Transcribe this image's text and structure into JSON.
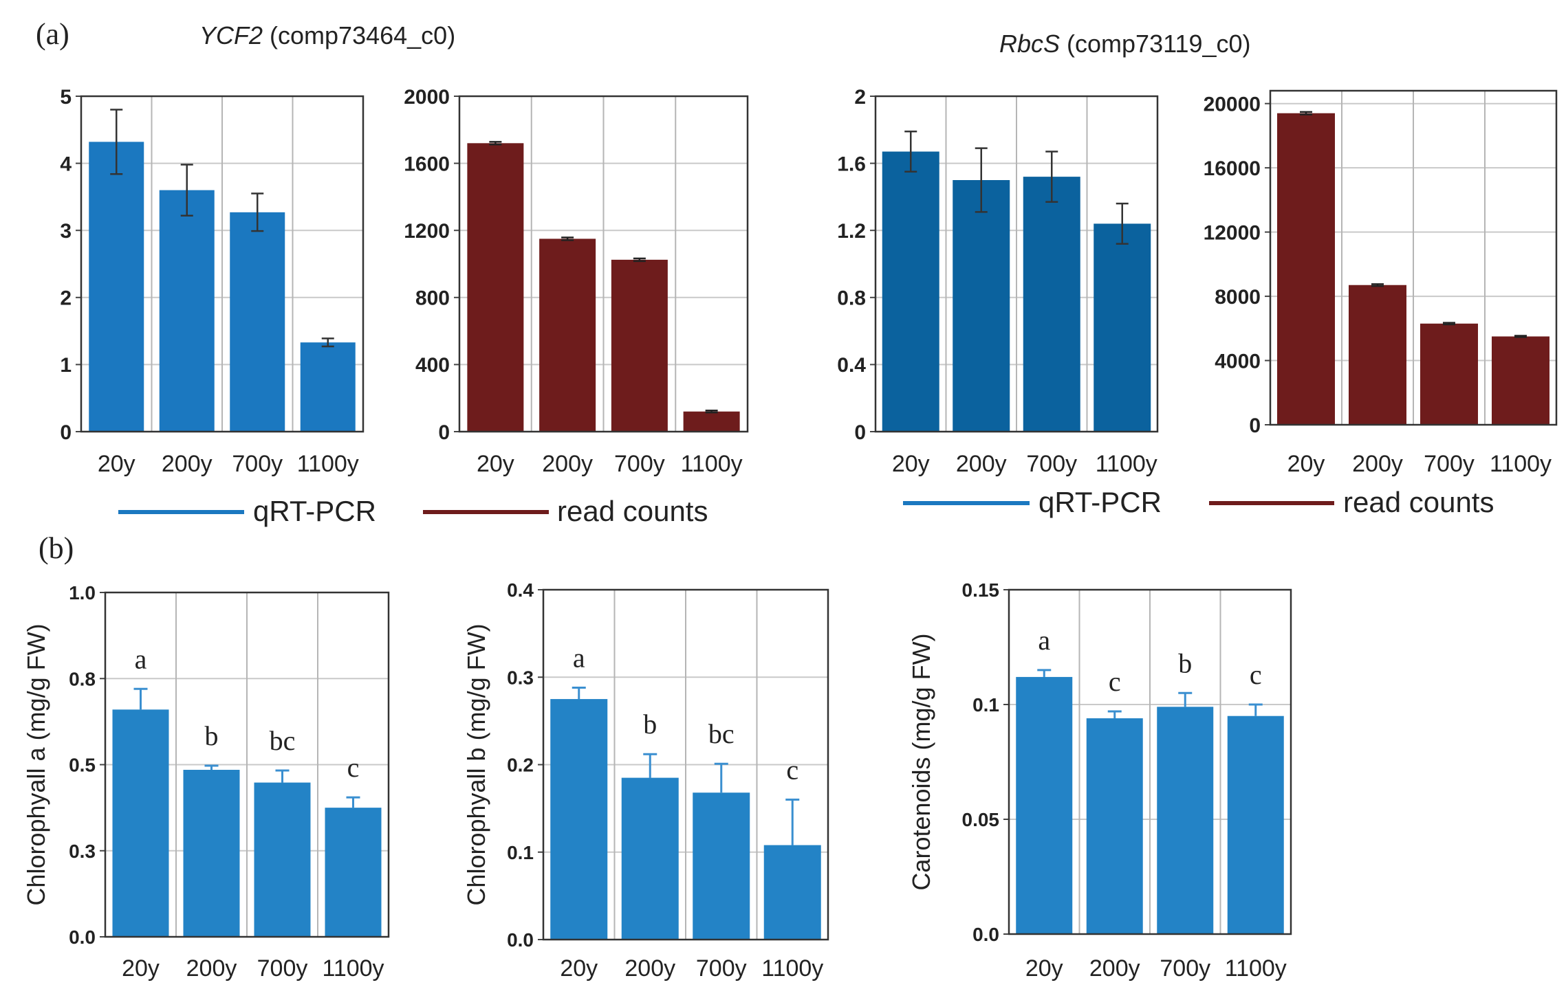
{
  "figure": {
    "panel_a_label": "(a)",
    "panel_b_label": "(b)",
    "gene1": {
      "name": "YCF2",
      "id": " (comp73464_c0)"
    },
    "gene2": {
      "name": "RbcS",
      "id": " (comp73119_c0)"
    },
    "legend_a1": {
      "qrt": "qRT-PCR",
      "reads": "read counts"
    },
    "legend_a2": {
      "qrt": "qRT-PCR",
      "reads": "read counts"
    }
  },
  "colors": {
    "blue": "#1b78c0",
    "blue_dark": "#0b629e",
    "red": "#6e1c1c",
    "blue_b": "#2383c6",
    "err_b": "#3a8fd0"
  },
  "chart_data": [
    {
      "id": "a1",
      "type": "bar",
      "categories": [
        "20y",
        "200y",
        "700y",
        "1100y"
      ],
      "values": [
        4.32,
        3.6,
        3.27,
        1.33
      ],
      "errors": [
        0.48,
        0.38,
        0.28,
        0.06
      ],
      "ylim": [
        0,
        5
      ],
      "yticks": [
        "0",
        "1",
        "2",
        "3",
        "4",
        "5"
      ],
      "color": "#1b78c0",
      "err_color": "#333333",
      "title": "",
      "xlabel": "",
      "ylabel": ""
    },
    {
      "id": "a2",
      "type": "bar",
      "categories": [
        "20y",
        "200y",
        "700y",
        "1100y"
      ],
      "values": [
        1720,
        1150,
        1025,
        120
      ],
      "errors": [
        8,
        8,
        8,
        6
      ],
      "ylim": [
        0,
        2000
      ],
      "yticks": [
        "0",
        "400",
        "800",
        "1200",
        "1600",
        "2000"
      ],
      "color": "#6e1c1c",
      "err_color": "#222222",
      "title": "",
      "xlabel": "",
      "ylabel": ""
    },
    {
      "id": "a3",
      "type": "bar",
      "categories": [
        "20y",
        "200y",
        "700y",
        "1100y"
      ],
      "values": [
        1.67,
        1.5,
        1.52,
        1.24
      ],
      "errors": [
        0.12,
        0.19,
        0.15,
        0.12
      ],
      "ylim": [
        0,
        2
      ],
      "yticks": [
        "0",
        "0.4",
        "0.8",
        "1.2",
        "1.6",
        "2"
      ],
      "color": "#0b629e",
      "err_color": "#333333",
      "title": "",
      "xlabel": "",
      "ylabel": ""
    },
    {
      "id": "a4",
      "type": "bar",
      "categories": [
        "20y",
        "200y",
        "700y",
        "1100y"
      ],
      "values": [
        19400,
        8700,
        6300,
        5500
      ],
      "errors": [
        80,
        60,
        50,
        40
      ],
      "ylim": [
        0,
        20800
      ],
      "yticks": [
        "0",
        "4000",
        "8000",
        "12000",
        "16000",
        "20000"
      ],
      "ytick_values": [
        0,
        4000,
        8000,
        12000,
        16000,
        20000
      ],
      "color": "#6e1c1c",
      "err_color": "#222222",
      "title": "",
      "xlabel": "",
      "ylabel": ""
    },
    {
      "id": "b1",
      "type": "bar",
      "categories": [
        "20y",
        "200y",
        "700y",
        "1100y"
      ],
      "values": [
        0.66,
        0.485,
        0.448,
        0.375
      ],
      "errors": [
        0.06,
        0.012,
        0.035,
        0.03
      ],
      "letters": [
        "a",
        "b",
        "bc",
        "c"
      ],
      "ylim": [
        0,
        1.0
      ],
      "yticks": [
        "0.0",
        "0.3",
        "0.5",
        "0.8",
        "1.0"
      ],
      "ytick_values": [
        0,
        0.25,
        0.5,
        0.75,
        1.0
      ],
      "color": "#2383c6",
      "err_color": "#3a8fd0",
      "title": "",
      "xlabel": "",
      "ylabel": "Chlorophyall a (mg/g FW)"
    },
    {
      "id": "b2",
      "type": "bar",
      "categories": [
        "20y",
        "200y",
        "700y",
        "1100y"
      ],
      "values": [
        0.275,
        0.185,
        0.168,
        0.108
      ],
      "errors": [
        0.013,
        0.027,
        0.033,
        0.052
      ],
      "letters": [
        "a",
        "b",
        "bc",
        "c"
      ],
      "ylim": [
        0,
        0.4
      ],
      "yticks": [
        "0.0",
        "0.1",
        "0.2",
        "0.3",
        "0.4"
      ],
      "color": "#2383c6",
      "err_color": "#3a8fd0",
      "title": "",
      "xlabel": "",
      "ylabel": "Chlorophyall b (mg/g FW)"
    },
    {
      "id": "b3",
      "type": "bar",
      "categories": [
        "20y",
        "200y",
        "700y",
        "1100y"
      ],
      "values": [
        0.112,
        0.094,
        0.099,
        0.095
      ],
      "errors": [
        0.003,
        0.003,
        0.006,
        0.005
      ],
      "letters": [
        "a",
        "c",
        "b",
        "c"
      ],
      "ylim": [
        0,
        0.15
      ],
      "yticks": [
        "0.0",
        "0.05",
        "0.1",
        "0.15"
      ],
      "color": "#2383c6",
      "err_color": "#3a8fd0",
      "title": "",
      "xlabel": "",
      "ylabel": "Carotenoids (mg/g FW)"
    }
  ]
}
